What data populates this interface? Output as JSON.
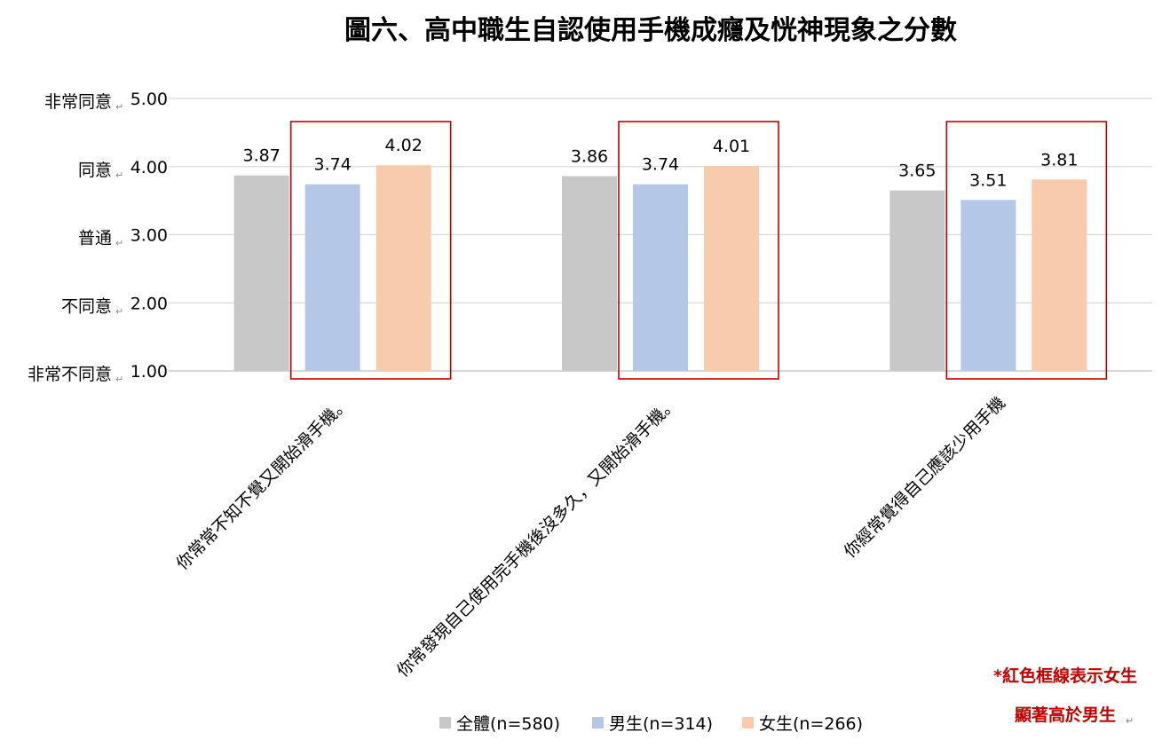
{
  "chart_data": {
    "type": "bar",
    "title": "圖六、高中職生自認使用手機成癮及恍神現象之分數",
    "categories": [
      "你常常不知不覺又開始滑手機。",
      "你常發現自己使用完手機後沒多久，又開始滑手機。",
      "你經常覺得自己應該少用手機"
    ],
    "series": [
      {
        "name": "全體(n=580)",
        "color": "#c8c8c8",
        "values": [
          3.87,
          3.86,
          3.65
        ]
      },
      {
        "name": "男生(n=314)",
        "color": "#b4c7e7",
        "values": [
          3.74,
          3.74,
          3.51
        ]
      },
      {
        "name": "女生(n=266)",
        "color": "#f8cbad",
        "values": [
          4.02,
          4.01,
          3.81
        ]
      }
    ],
    "ylim": [
      1,
      5
    ],
    "yticks": [
      {
        "value": 5,
        "tick": "5.00",
        "label": "非常同意"
      },
      {
        "value": 4,
        "tick": "4.00",
        "label": "同意"
      },
      {
        "value": 3,
        "tick": "3.00",
        "label": "普通"
      },
      {
        "value": 2,
        "tick": "2.00",
        "label": "不同意"
      },
      {
        "value": 1,
        "tick": "1.00",
        "label": "非常不同意"
      }
    ],
    "grid": true,
    "legend_position": "bottom",
    "highlight_color": "#c00000",
    "highlighted_series": [
      "男生(n=314)",
      "女生(n=266)"
    ],
    "annotation": [
      "*紅色框線表示女生",
      "顯著高於男生"
    ]
  }
}
